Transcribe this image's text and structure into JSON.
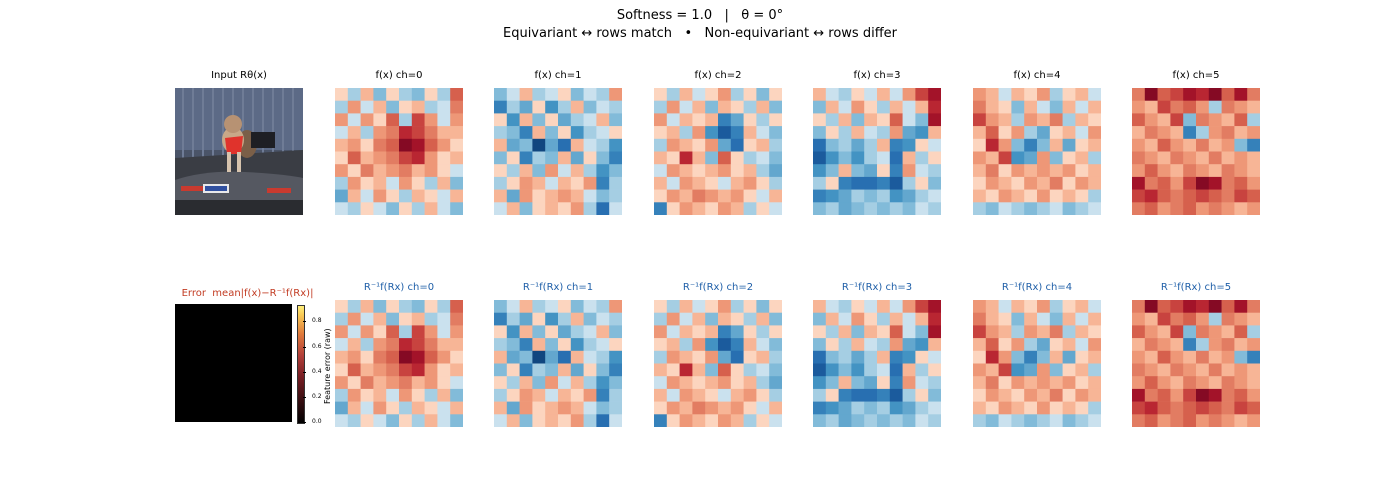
{
  "chart_data": {
    "type": "heatmap",
    "title_line1": "Softness = 1.0   |   θ = 0°",
    "title_line2": "Equivariant ↔ rows match   •   Non-equivariant ↔ rows differ",
    "input_title": "Input Rθ(x)",
    "error_title": "Error  mean|f(x)−R⁻¹f(Rx)|",
    "colorbar": {
      "label": "Feature error (raw)",
      "ticks": [
        "0.0",
        "0.2",
        "0.4",
        "0.6",
        "0.8"
      ]
    },
    "grid_size": 10,
    "top_row_titles": [
      "f(x) ch=0",
      "f(x) ch=1",
      "f(x) ch=2",
      "f(x) ch=3",
      "f(x) ch=4",
      "f(x) ch=5"
    ],
    "bottom_row_titles": [
      "R⁻¹f(Rx) ch=0",
      "R⁻¹f(Rx) ch=1",
      "R⁻¹f(Rx) ch=2",
      "R⁻¹f(Rx) ch=3",
      "R⁻¹f(Rx) ch=4",
      "R⁻¹f(Rx) ch=5"
    ],
    "colormap": "RdBu_r",
    "value_range": [
      -1,
      1
    ],
    "channels": [
      [
        [
          0.1,
          -0.2,
          0.2,
          -0.3,
          0.1,
          -0.2,
          -0.3,
          0.1,
          -0.2,
          0.5
        ],
        [
          -0.2,
          0.3,
          -0.1,
          0.2,
          -0.3,
          0.1,
          0.2,
          -0.2,
          -0.1,
          0.4
        ],
        [
          0.3,
          -0.1,
          0.3,
          0.1,
          0.5,
          -0.2,
          0.6,
          0.3,
          -0.1,
          0.3
        ],
        [
          -0.1,
          0.2,
          -0.2,
          0.3,
          0.4,
          0.7,
          0.6,
          0.4,
          0.2,
          0.2
        ],
        [
          0.2,
          0.3,
          0.1,
          0.4,
          0.5,
          0.9,
          0.8,
          0.5,
          0.3,
          0.1
        ],
        [
          0.1,
          0.5,
          0.2,
          0.3,
          0.4,
          0.6,
          0.7,
          0.3,
          0.1,
          0.2
        ],
        [
          0.3,
          0.1,
          0.4,
          0.2,
          0.3,
          0.4,
          0.2,
          0.3,
          0.1,
          -0.1
        ],
        [
          -0.2,
          0.3,
          0.1,
          0.2,
          -0.1,
          0.3,
          0.1,
          -0.2,
          0.2,
          -0.3
        ],
        [
          -0.4,
          0.2,
          -0.1,
          0.3,
          0.1,
          -0.2,
          0.2,
          0.1,
          -0.1,
          0.2
        ],
        [
          -0.1,
          -0.2,
          0.1,
          -0.1,
          -0.3,
          0.1,
          -0.2,
          0.2,
          -0.1,
          -0.3
        ]
      ],
      [
        [
          -0.3,
          -0.1,
          0.2,
          -0.2,
          -0.1,
          0.1,
          -0.3,
          -0.1,
          -0.2,
          0.3
        ],
        [
          -0.6,
          -0.2,
          -0.4,
          0.1,
          -0.5,
          -0.2,
          0.2,
          -0.3,
          -0.1,
          -0.2
        ],
        [
          0.1,
          -0.5,
          0.2,
          -0.3,
          0.1,
          -0.4,
          -0.2,
          -0.1,
          0.2,
          -0.3
        ],
        [
          -0.2,
          -0.3,
          -0.6,
          0.2,
          -0.3,
          0.1,
          -0.5,
          -0.2,
          -0.1,
          0.1
        ],
        [
          0.2,
          -0.4,
          -0.3,
          -0.9,
          -0.4,
          -0.7,
          0.2,
          -0.1,
          -0.2,
          -0.5
        ],
        [
          -0.3,
          0.1,
          -0.6,
          -0.2,
          -0.3,
          0.2,
          -0.4,
          0.1,
          -0.3,
          -0.6
        ],
        [
          0.1,
          -0.2,
          0.2,
          -0.3,
          0.3,
          -0.1,
          0.2,
          -0.2,
          -0.5,
          -0.3
        ],
        [
          -0.2,
          0.1,
          0.3,
          0.2,
          -0.1,
          0.2,
          0.1,
          0.3,
          -0.6,
          -0.2
        ],
        [
          0.2,
          -0.4,
          0.3,
          0.1,
          0.2,
          0.3,
          0.2,
          -0.1,
          -0.3,
          -0.2
        ],
        [
          -0.1,
          0.2,
          -0.3,
          0.1,
          0.2,
          0.1,
          0.3,
          -0.2,
          -0.7,
          -0.1
        ]
      ],
      [
        [
          0.1,
          -0.2,
          0.2,
          -0.1,
          0.1,
          0.3,
          -0.2,
          0.1,
          -0.3,
          0.1
        ],
        [
          -0.2,
          0.3,
          -0.1,
          0.2,
          -0.3,
          0.2,
          0.1,
          -0.2,
          0.2,
          -0.3
        ],
        [
          0.3,
          -0.1,
          0.2,
          0.1,
          0.2,
          -0.6,
          -0.4,
          0.1,
          -0.2,
          0.1
        ],
        [
          0.1,
          0.2,
          -0.2,
          0.3,
          -0.5,
          -0.8,
          -0.6,
          0.2,
          -0.1,
          -0.3
        ],
        [
          -0.2,
          0.3,
          0.2,
          0.1,
          0.3,
          -0.4,
          -0.7,
          0.1,
          0.2,
          -0.2
        ],
        [
          0.2,
          0.1,
          0.7,
          0.2,
          -0.3,
          0.5,
          0.1,
          -0.2,
          -0.1,
          -0.3
        ],
        [
          -0.1,
          0.3,
          0.2,
          0.1,
          0.2,
          0.3,
          0.1,
          0.2,
          -0.2,
          -0.4
        ],
        [
          0.2,
          -0.1,
          0.3,
          0.2,
          0.1,
          -0.1,
          0.2,
          0.3,
          0.1,
          -0.2
        ],
        [
          0.1,
          0.3,
          0.2,
          0.4,
          0.3,
          0.2,
          0.3,
          0.1,
          -0.1,
          0.2
        ],
        [
          -0.6,
          0.1,
          0.3,
          0.2,
          0.1,
          0.3,
          0.2,
          -0.2,
          0.1,
          -0.1
        ]
      ],
      [
        [
          0.2,
          -0.1,
          -0.2,
          0.1,
          -0.1,
          0.2,
          -0.1,
          0.3,
          0.6,
          0.8
        ],
        [
          -0.3,
          0.2,
          -0.1,
          0.3,
          0.1,
          -0.2,
          0.2,
          -0.1,
          0.2,
          0.7
        ],
        [
          0.1,
          -0.2,
          0.2,
          -0.3,
          0.2,
          0.1,
          0.5,
          -0.1,
          -0.3,
          0.8
        ],
        [
          -0.3,
          0.1,
          -0.2,
          0.2,
          -0.1,
          -0.2,
          0.3,
          -0.4,
          -0.5,
          0.2
        ],
        [
          -0.7,
          -0.3,
          -0.2,
          -0.4,
          -0.2,
          0.2,
          -0.6,
          -0.5,
          0.1,
          -0.1
        ],
        [
          -0.8,
          -0.5,
          -0.3,
          -0.5,
          -0.2,
          -0.1,
          -0.7,
          0.2,
          -0.2,
          0.1
        ],
        [
          -0.5,
          -0.3,
          0.2,
          -0.3,
          -0.4,
          0.1,
          -0.6,
          0.3,
          -0.1,
          -0.2
        ],
        [
          -0.2,
          0.1,
          -0.6,
          -0.7,
          -0.7,
          -0.6,
          -0.8,
          -0.2,
          0.1,
          -0.3
        ],
        [
          -0.6,
          -0.5,
          -0.4,
          -0.2,
          -0.3,
          -0.2,
          -0.5,
          -0.4,
          -0.2,
          -0.1
        ],
        [
          -0.3,
          -0.2,
          -0.4,
          -0.3,
          -0.2,
          -0.3,
          -0.2,
          -0.3,
          -0.1,
          -0.2
        ]
      ],
      [
        [
          0.3,
          0.2,
          -0.1,
          0.2,
          0.1,
          0.3,
          -0.2,
          0.1,
          0.2,
          -0.1
        ],
        [
          0.4,
          0.2,
          0.1,
          -0.3,
          0.2,
          -0.1,
          -0.3,
          0.2,
          -0.1,
          0.2
        ],
        [
          0.6,
          0.3,
          0.2,
          -0.2,
          0.3,
          0.2,
          0.4,
          -0.2,
          0.2,
          0.1
        ],
        [
          0.2,
          0.5,
          0.1,
          0.3,
          -0.2,
          -0.4,
          0.1,
          0.2,
          -0.1,
          0.3
        ],
        [
          0.1,
          0.7,
          0.3,
          -0.3,
          -0.6,
          -0.3,
          0.2,
          -0.4,
          0.1,
          0.2
        ],
        [
          0.3,
          0.2,
          0.6,
          -0.5,
          -0.4,
          0.3,
          -0.3,
          0.1,
          0.2,
          -0.2
        ],
        [
          0.2,
          0.4,
          0.1,
          0.3,
          0.2,
          0.3,
          0.2,
          0.3,
          0.1,
          0.2
        ],
        [
          0.1,
          0.3,
          0.2,
          0.1,
          0.3,
          0.2,
          0.4,
          0.1,
          0.3,
          0.2
        ],
        [
          0.2,
          0.1,
          0.3,
          0.2,
          0.1,
          0.3,
          0.1,
          0.2,
          0.1,
          -0.2
        ],
        [
          -0.2,
          -0.3,
          -0.1,
          -0.2,
          -0.3,
          -0.2,
          -0.1,
          -0.3,
          -0.2,
          -0.1
        ]
      ],
      [
        [
          0.4,
          0.9,
          0.5,
          0.6,
          0.8,
          0.7,
          0.9,
          0.5,
          0.8,
          0.4
        ],
        [
          0.3,
          0.2,
          0.6,
          0.4,
          0.5,
          0.3,
          -0.2,
          0.4,
          0.3,
          0.2
        ],
        [
          0.5,
          0.3,
          0.2,
          0.6,
          -0.3,
          0.4,
          0.3,
          0.2,
          0.5,
          -0.2
        ],
        [
          0.2,
          0.4,
          0.3,
          0.2,
          -0.6,
          -0.2,
          0.3,
          0.4,
          0.2,
          0.3
        ],
        [
          0.3,
          0.2,
          0.5,
          0.3,
          0.2,
          0.4,
          0.2,
          0.3,
          -0.3,
          -0.6
        ],
        [
          0.4,
          0.3,
          0.2,
          0.4,
          0.3,
          0.2,
          0.4,
          0.2,
          0.3,
          0.2
        ],
        [
          0.3,
          0.5,
          0.3,
          0.2,
          0.4,
          0.3,
          0.2,
          0.4,
          0.3,
          0.2
        ],
        [
          0.8,
          0.4,
          0.5,
          0.3,
          0.6,
          0.9,
          0.8,
          0.4,
          0.5,
          0.3
        ],
        [
          0.6,
          0.7,
          0.5,
          0.4,
          0.5,
          0.6,
          0.5,
          0.4,
          0.6,
          0.5
        ],
        [
          0.4,
          0.5,
          0.3,
          0.4,
          0.5,
          0.3,
          0.4,
          0.3,
          0.2,
          0.3
        ]
      ]
    ],
    "error_value": 0.0
  }
}
